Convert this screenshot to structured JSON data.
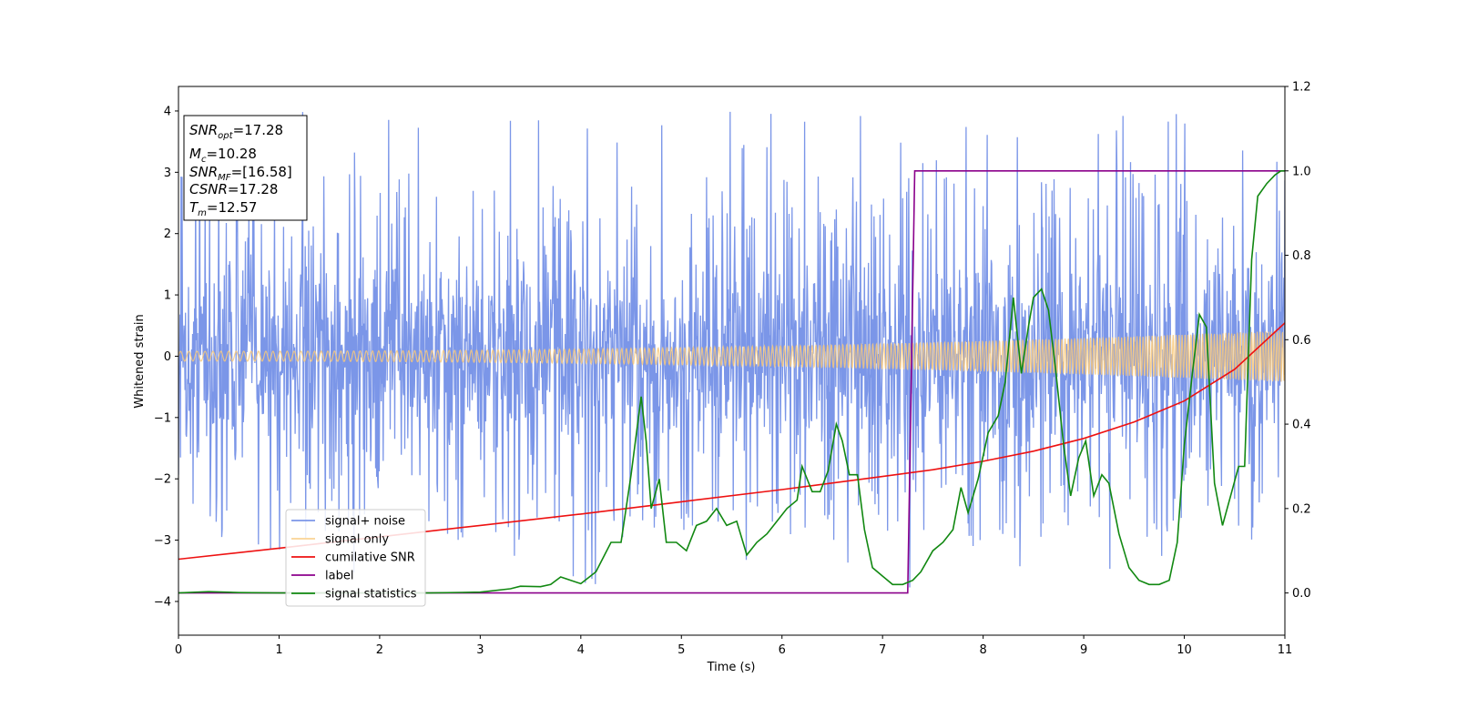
{
  "chart_data": {
    "type": "line",
    "xlabel": "Time (s)",
    "ylabel": "Whitened strain",
    "xlim": [
      0,
      11
    ],
    "ylim": [
      -4.55,
      4.4
    ],
    "ylim_right": [
      -0.1,
      1.2
    ],
    "x_ticks": [
      "0",
      "1",
      "2",
      "3",
      "4",
      "5",
      "6",
      "7",
      "8",
      "9",
      "10",
      "11"
    ],
    "y_ticks": [
      "4",
      "3",
      "2",
      "1",
      "0",
      "−1",
      "−2",
      "−3",
      "−4"
    ],
    "y_ticks_right": [
      "1.2",
      "1.0",
      "0.8",
      "0.6",
      "0.4",
      "0.2",
      "0.0"
    ],
    "grid": false,
    "legend_placement": "lower-left",
    "annotation": {
      "lines": [
        {
          "base": "SNR",
          "sub": "opt",
          "value": "=17.28"
        },
        {
          "base": "M",
          "sub": "c",
          "value": "=10.28"
        },
        {
          "base": "SNR",
          "sub": "MF",
          "value": "=[16.58]"
        },
        {
          "base": "CSNR",
          "sub": "",
          "value": "=17.28"
        },
        {
          "base": "T",
          "sub": "m",
          "value": "=12.57"
        }
      ]
    },
    "series": [
      {
        "name": "signal+ noise",
        "color": "#7b96e8",
        "axis": "left",
        "kind": "noise",
        "envelope": [
          -2.4,
          2.4
        ],
        "peak_range": [
          -4.1,
          4.0
        ]
      },
      {
        "name": "signal only",
        "color": "#f9c97a",
        "axis": "left",
        "kind": "chirp",
        "amplitude_start": 0.08,
        "amplitude_end": 0.42
      },
      {
        "name": "cumilative SNR",
        "color": "#ee1111",
        "axis": "right",
        "x": [
          0,
          1,
          2,
          3,
          4,
          5,
          6,
          7,
          7.5,
          8,
          8.5,
          9,
          9.5,
          10,
          10.5,
          11
        ],
        "y": [
          0.08,
          0.106,
          0.133,
          0.16,
          0.187,
          0.216,
          0.245,
          0.276,
          0.292,
          0.312,
          0.336,
          0.366,
          0.405,
          0.455,
          0.53,
          0.64
        ]
      },
      {
        "name": "label",
        "color": "#8b008b",
        "axis": "right",
        "x": [
          0,
          7.25,
          7.32,
          11
        ],
        "y": [
          0.0,
          0.0,
          1.0,
          1.0
        ]
      },
      {
        "name": "signal statistics",
        "color": "#118811",
        "axis": "right",
        "x": [
          0,
          0.3,
          0.6,
          1,
          1.5,
          2,
          2.5,
          3,
          3.3,
          3.4,
          3.6,
          3.7,
          3.8,
          3.9,
          4,
          4.15,
          4.3,
          4.4,
          4.5,
          4.6,
          4.65,
          4.7,
          4.78,
          4.85,
          4.95,
          5.05,
          5.15,
          5.25,
          5.35,
          5.45,
          5.55,
          5.65,
          5.75,
          5.85,
          5.95,
          6.05,
          6.15,
          6.2,
          6.3,
          6.38,
          6.46,
          6.54,
          6.6,
          6.67,
          6.75,
          6.82,
          6.9,
          7,
          7.1,
          7.2,
          7.3,
          7.38,
          7.5,
          7.6,
          7.7,
          7.78,
          7.85,
          7.95,
          8.05,
          8.15,
          8.22,
          8.3,
          8.38,
          8.45,
          8.5,
          8.58,
          8.65,
          8.72,
          8.8,
          8.87,
          8.95,
          9.02,
          9.1,
          9.18,
          9.25,
          9.35,
          9.45,
          9.55,
          9.65,
          9.75,
          9.85,
          9.93,
          10,
          10.08,
          10.15,
          10.22,
          10.3,
          10.38,
          10.46,
          10.54,
          10.6,
          10.67,
          10.73,
          10.82,
          10.9,
          10.96,
          11
        ],
        "y": [
          0.0,
          0.003,
          0.001,
          0.0,
          0.0,
          0.0,
          0.0,
          0.002,
          0.01,
          0.016,
          0.015,
          0.02,
          0.038,
          0.03,
          0.022,
          0.05,
          0.12,
          0.12,
          0.28,
          0.465,
          0.36,
          0.2,
          0.27,
          0.12,
          0.12,
          0.1,
          0.16,
          0.17,
          0.2,
          0.16,
          0.17,
          0.09,
          0.12,
          0.14,
          0.17,
          0.2,
          0.22,
          0.3,
          0.24,
          0.24,
          0.29,
          0.4,
          0.36,
          0.28,
          0.28,
          0.15,
          0.06,
          0.04,
          0.02,
          0.02,
          0.03,
          0.05,
          0.1,
          0.12,
          0.15,
          0.25,
          0.19,
          0.27,
          0.38,
          0.42,
          0.5,
          0.7,
          0.52,
          0.63,
          0.7,
          0.72,
          0.67,
          0.53,
          0.35,
          0.23,
          0.32,
          0.36,
          0.23,
          0.28,
          0.26,
          0.14,
          0.06,
          0.03,
          0.02,
          0.02,
          0.03,
          0.12,
          0.35,
          0.52,
          0.66,
          0.63,
          0.26,
          0.16,
          0.23,
          0.3,
          0.3,
          0.79,
          0.94,
          0.97,
          0.99,
          1.0,
          1.0
        ]
      }
    ]
  }
}
